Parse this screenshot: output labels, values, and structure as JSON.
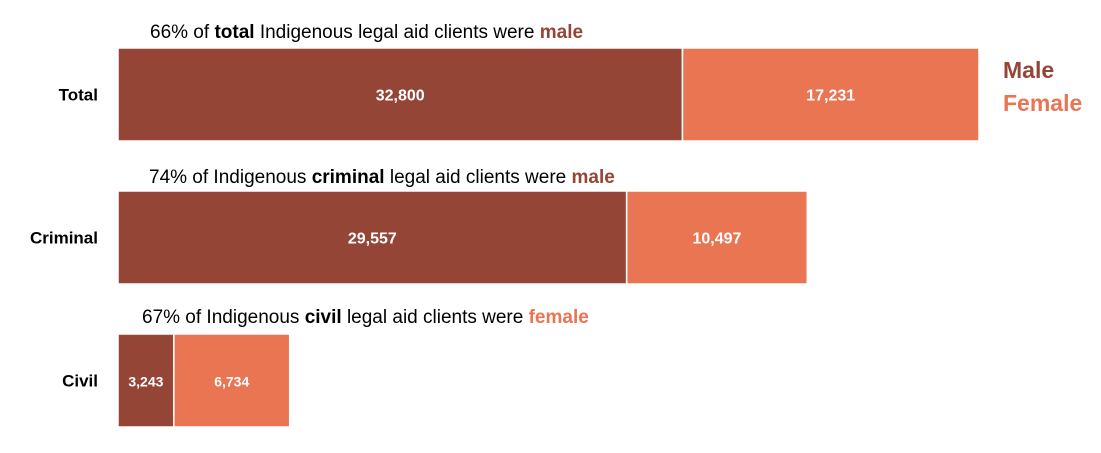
{
  "chart_data": {
    "type": "bar",
    "orientation": "horizontal",
    "stacked": true,
    "categories": [
      "Total",
      "Criminal",
      "Civil"
    ],
    "series": [
      {
        "name": "Male",
        "color": "#944536",
        "values": [
          32800,
          29557,
          3243
        ],
        "labels": [
          "32,800",
          "29,557",
          "3,243"
        ]
      },
      {
        "name": "Female",
        "color": "#E97553",
        "values": [
          17231,
          10497,
          6734
        ],
        "labels": [
          "17,231",
          "10,497",
          "6,734"
        ]
      }
    ],
    "annotations": [
      {
        "pre": "66% of ",
        "bold": "total",
        "mid": " Indigenous legal aid clients were ",
        "tail": "male",
        "tail_series": "Male"
      },
      {
        "pre": "74% of Indigenous ",
        "bold": "criminal",
        "mid": " legal aid clients were ",
        "tail": "male",
        "tail_series": "Male"
      },
      {
        "pre": "67% of Indigenous ",
        "bold": "civil",
        "mid": " legal aid clients were ",
        "tail": "female",
        "tail_series": "Female"
      }
    ],
    "legend": {
      "position": "right",
      "items": [
        "Male",
        "Female"
      ]
    },
    "grid": false,
    "xlim": [
      0,
      50031
    ]
  }
}
